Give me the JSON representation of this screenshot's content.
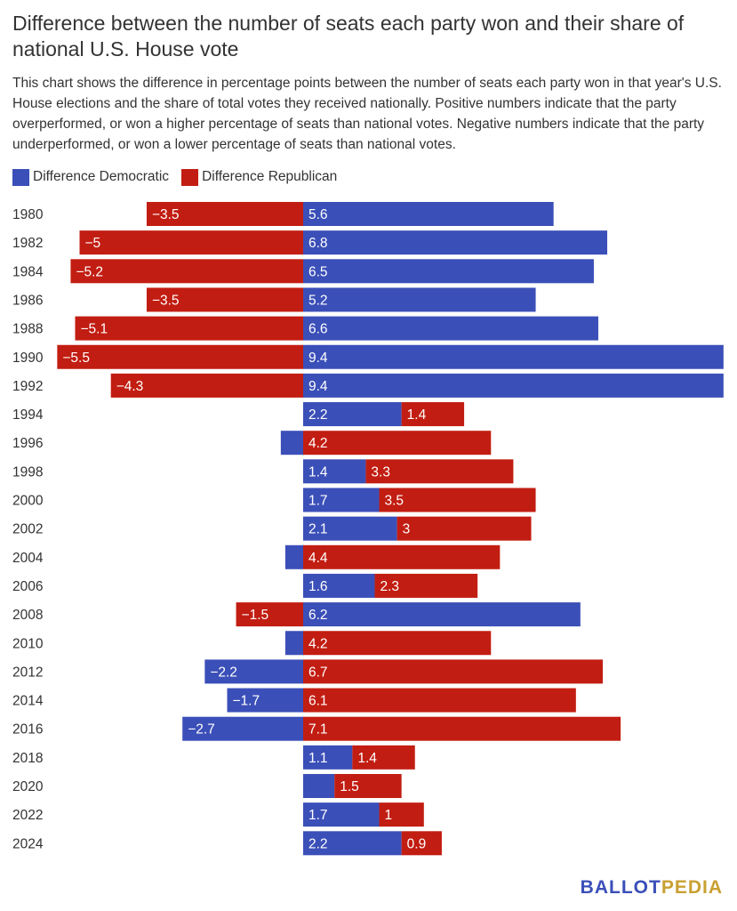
{
  "title": "Difference between the number of seats each party won and their share of national U.S. House vote",
  "description": "This chart shows the difference in percentage points between the number of seats each party won in that year's U.S. House elections and the share of total votes they received nationally. Positive numbers indicate that the party overperformed, or won a higher percentage of seats than national votes. Negative numbers indicate that the party underperformed, or won a lower percentage of seats than national votes.",
  "brand": {
    "part1": "BALLOT",
    "part2": "PEDIA"
  },
  "colors": {
    "democratic": "#3b4fb8",
    "republican": "#c21d12",
    "brand_blue": "#3b4fb8",
    "brand_gold": "#c9a032"
  },
  "chart_data": {
    "type": "bar",
    "orientation": "horizontal",
    "stacked": true,
    "categories": [
      "1980",
      "1982",
      "1984",
      "1986",
      "1988",
      "1990",
      "1992",
      "1994",
      "1996",
      "1998",
      "2000",
      "2002",
      "2004",
      "2006",
      "2008",
      "2010",
      "2012",
      "2014",
      "2016",
      "2018",
      "2020",
      "2022",
      "2024"
    ],
    "series": [
      {
        "name": "Difference Democratic",
        "values": [
          5.6,
          6.8,
          6.5,
          5.2,
          6.6,
          9.4,
          9.4,
          2.2,
          -0.5,
          1.4,
          1.7,
          2.1,
          -0.4,
          1.6,
          6.2,
          -0.4,
          -2.2,
          -1.7,
          -2.7,
          1.1,
          0.7,
          1.7,
          2.2
        ],
        "labels": [
          "5.6",
          "6.8",
          "6.5",
          "5.2",
          "6.6",
          "9.4",
          "9.4",
          "2.2",
          "",
          "1.4",
          "1.7",
          "2.1",
          "",
          "1.6",
          "6.2",
          "",
          "−2.2",
          "−1.7",
          "−2.7",
          "1.1",
          "",
          "1.7",
          "2.2"
        ]
      },
      {
        "name": "Difference Republican",
        "values": [
          -3.5,
          -5,
          -5.2,
          -3.5,
          -5.1,
          -5.5,
          -4.3,
          1.4,
          4.2,
          3.3,
          3.5,
          3,
          4.4,
          2.3,
          -1.5,
          4.2,
          6.7,
          6.1,
          7.1,
          1.4,
          1.5,
          1,
          0.9
        ],
        "labels": [
          "−3.5",
          "−5",
          "−5.2",
          "−3.5",
          "−5.1",
          "−5.5",
          "−4.3",
          "1.4",
          "4.2",
          "3.3",
          "3.5",
          "3",
          "4.4",
          "2.3",
          "−1.5",
          "4.2",
          "6.7",
          "6.1",
          "7.1",
          "1.4",
          "1.5",
          "1",
          "0.9"
        ]
      }
    ],
    "legend_position": "top-left",
    "grid": false
  }
}
